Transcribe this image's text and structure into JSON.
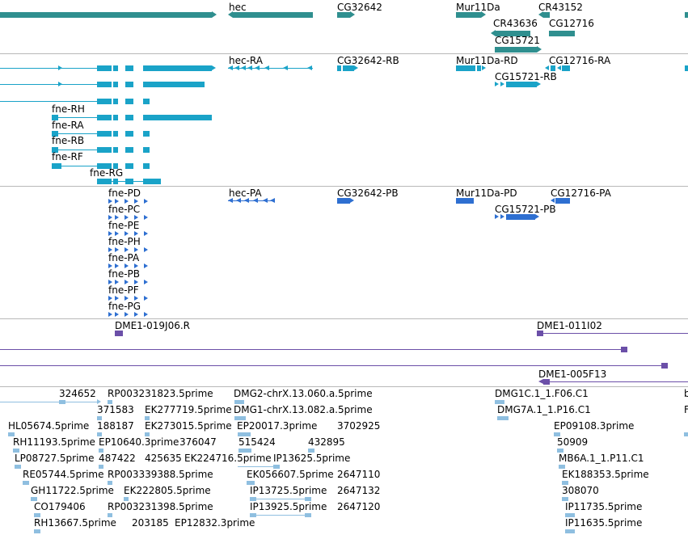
{
  "colors": {
    "gene": "#2f8f8f",
    "transcript": "#1aa3c8",
    "protein": "#2e6fd1",
    "cdna": "#6b4fa8",
    "est": "#8fbfe0",
    "separator": "#b8b8b8"
  },
  "genes_track": {
    "labels": [
      "hec",
      "CG32642",
      "Mur11Da",
      "CR43152",
      "CR43636",
      "CG12716",
      "CG15721"
    ]
  },
  "transcripts_track": {
    "labels": [
      "hec-RA",
      "CG32642-RB",
      "Mur11Da-RD",
      "CG12716-RA",
      "CG15721-RB",
      "fne-RH",
      "fne-RA",
      "fne-RB",
      "fne-RF",
      "fne-RG"
    ]
  },
  "proteins_track": {
    "labels": [
      "fne-PD",
      "hec-PA",
      "CG32642-PB",
      "Mur11Da-PD",
      "CG12716-PA",
      "CG15721-PB",
      "fne-PC",
      "fne-PE",
      "fne-PH",
      "fne-PA",
      "fne-PB",
      "fne-PF",
      "fne-PG"
    ]
  },
  "cdna_track": {
    "labels": [
      "DME1-019J06.R",
      "DME1-011I02",
      "DME1-005F13"
    ]
  },
  "est_track": {
    "labels": [
      "324652",
      "RP003231823.5prime",
      "DMG2-chrX.13.060.a.5prime",
      "DMG1C.1_1.F06.C1",
      "371583",
      "EK277719.5prime",
      "DMG1-chrX.13.082.a.5prime",
      "DMG7A.1_1.P16.C1",
      "HL05674.5prime",
      "188187",
      "EK273015.5prime",
      "EP20017.3prime",
      "3702925",
      "EP09108.3prime",
      "RH11193.5prime",
      "EP10640.3prime",
      "376047",
      "515424",
      "432895",
      "50909",
      "LP08727.5prime",
      "487422",
      "425635",
      "EK224716.5prime",
      "IP13625.5prime",
      "MB6A.1_1.P11.C1",
      "RE05744.5prime",
      "RP003339388.5prime",
      "EK056607.5prime",
      "2647110",
      "EK188353.5prime",
      "GH11722.5prime",
      "EK222805.5prime",
      "IP13725.5prime",
      "2647132",
      "308070",
      "CO179406",
      "RP003231398.5prime",
      "IP13925.5prime",
      "2647120",
      "IP11735.5prime",
      "RH13667.5prime",
      "203185",
      "EP12832.3prime",
      "IP11635.5prime"
    ]
  }
}
